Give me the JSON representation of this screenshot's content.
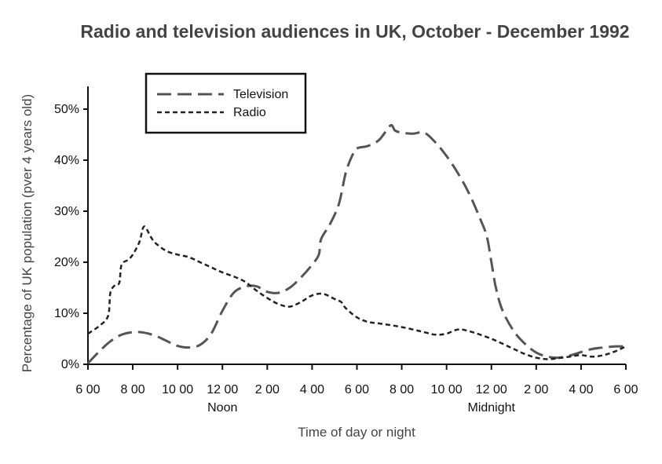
{
  "chart_data": {
    "type": "line",
    "title": "Radio and television audiences in UK, October - December 1992",
    "xlabel": "Time of day or night",
    "ylabel": "Percentage of UK population (pver 4 years old)",
    "x_tick_labels": [
      "6 00",
      "8 00",
      "10 00",
      "12 00",
      "2 00",
      "4 00",
      "6 00",
      "8 00",
      "10 00",
      "12 00",
      "2 00",
      "4 00",
      "6 00"
    ],
    "x_sub_labels": [
      {
        "index": 3,
        "label": "Noon"
      },
      {
        "index": 9,
        "label": "Midnight"
      }
    ],
    "x_unit": "hours since 6 00",
    "xlim": [
      0,
      24
    ],
    "ylim": [
      0,
      50
    ],
    "y_ticks": [
      0,
      10,
      20,
      30,
      40,
      50
    ],
    "y_tick_format": "%",
    "legend_position": "top-left",
    "series": [
      {
        "name": "Television",
        "style": "long-dash",
        "color": "#555555",
        "points": [
          [
            0,
            0.2
          ],
          [
            0.5,
            2.5
          ],
          [
            1,
            4.5
          ],
          [
            1.5,
            5.8
          ],
          [
            2,
            6.3
          ],
          [
            2.5,
            6.2
          ],
          [
            3,
            5.6
          ],
          [
            3.5,
            4.6
          ],
          [
            4,
            3.6
          ],
          [
            4.5,
            3.3
          ],
          [
            5,
            3.8
          ],
          [
            5.5,
            6
          ],
          [
            6,
            10.5
          ],
          [
            6.5,
            14
          ],
          [
            7,
            15.2
          ],
          [
            7.5,
            15.3
          ],
          [
            8,
            14.2
          ],
          [
            8.5,
            14
          ],
          [
            9,
            15
          ],
          [
            9.5,
            17
          ],
          [
            10,
            19.5
          ],
          [
            10.3,
            21.5
          ],
          [
            10.4,
            24.5
          ],
          [
            10.8,
            27.5
          ],
          [
            11.2,
            31.5
          ],
          [
            11.5,
            37.5
          ],
          [
            11.8,
            41
          ],
          [
            12,
            42.3
          ],
          [
            12.5,
            42.8
          ],
          [
            13,
            44
          ],
          [
            13.5,
            46.8
          ],
          [
            13.7,
            45.8
          ],
          [
            14,
            45.4
          ],
          [
            14.5,
            45.2
          ],
          [
            15,
            45.4
          ],
          [
            15.5,
            43.5
          ],
          [
            16,
            40.8
          ],
          [
            16.5,
            37.5
          ],
          [
            17,
            33.5
          ],
          [
            17.5,
            28.5
          ],
          [
            17.8,
            25
          ],
          [
            18,
            20
          ],
          [
            18.2,
            15
          ],
          [
            18.5,
            10.5
          ],
          [
            19,
            6.5
          ],
          [
            19.5,
            4
          ],
          [
            20,
            2.3
          ],
          [
            20.5,
            1.5
          ],
          [
            21,
            1.3
          ],
          [
            21.5,
            1.7
          ],
          [
            22,
            2.4
          ],
          [
            22.5,
            3
          ],
          [
            23,
            3.3
          ],
          [
            23.5,
            3.5
          ],
          [
            24,
            3.5
          ]
        ]
      },
      {
        "name": "Radio",
        "style": "short-dash",
        "color": "#222222",
        "points": [
          [
            0,
            6
          ],
          [
            0.5,
            7.5
          ],
          [
            0.9,
            9.5
          ],
          [
            1,
            14
          ],
          [
            1.2,
            15.5
          ],
          [
            1.4,
            16
          ],
          [
            1.5,
            19.5
          ],
          [
            1.8,
            20.5
          ],
          [
            2,
            21.5
          ],
          [
            2.3,
            24
          ],
          [
            2.5,
            27
          ],
          [
            2.8,
            25
          ],
          [
            3,
            23.8
          ],
          [
            3.5,
            22.2
          ],
          [
            4,
            21.5
          ],
          [
            4.5,
            21
          ],
          [
            5,
            20
          ],
          [
            5.5,
            19
          ],
          [
            6,
            18
          ],
          [
            6.5,
            17.2
          ],
          [
            7,
            16.2
          ],
          [
            7.5,
            14.5
          ],
          [
            8,
            13
          ],
          [
            8.5,
            11.8
          ],
          [
            9,
            11.3
          ],
          [
            9.5,
            12.2
          ],
          [
            10,
            13.5
          ],
          [
            10.5,
            13.8
          ],
          [
            11,
            12.8
          ],
          [
            11.3,
            12.2
          ],
          [
            11.5,
            11
          ],
          [
            12,
            9.2
          ],
          [
            12.5,
            8.3
          ],
          [
            13,
            8
          ],
          [
            14,
            7.3
          ],
          [
            15,
            6.3
          ],
          [
            15.5,
            5.8
          ],
          [
            16,
            6
          ],
          [
            16.5,
            6.8
          ],
          [
            17,
            6.5
          ],
          [
            18,
            5
          ],
          [
            19,
            3
          ],
          [
            19.5,
            2
          ],
          [
            20,
            1.3
          ],
          [
            20.5,
            1
          ],
          [
            21,
            1.2
          ],
          [
            21.5,
            1.5
          ],
          [
            22,
            1.8
          ],
          [
            22.5,
            1.5
          ],
          [
            23,
            1.8
          ],
          [
            23.5,
            2.5
          ],
          [
            24,
            3.5
          ]
        ]
      }
    ]
  }
}
